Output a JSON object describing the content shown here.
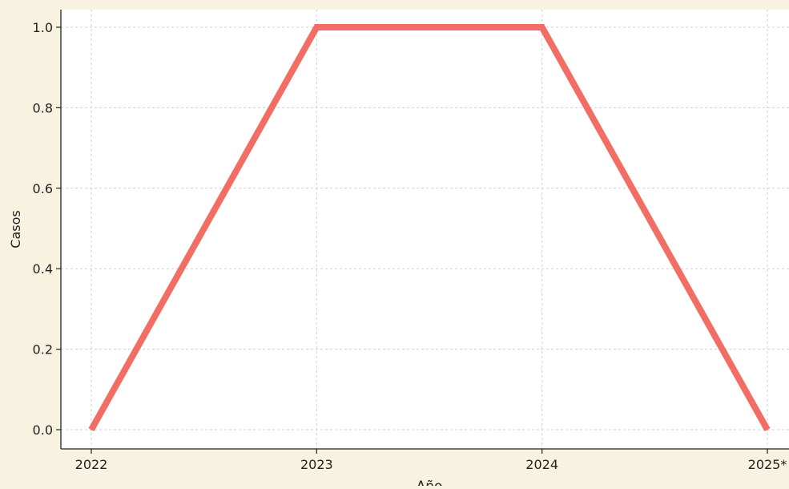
{
  "chart_data": {
    "type": "line",
    "title": "",
    "xlabel": "Año",
    "ylabel": "Casos",
    "categories": [
      "2022",
      "2023",
      "2024",
      "2025*"
    ],
    "series": [
      {
        "values": [
          0.0,
          1.0,
          1.0,
          0.0
        ],
        "color": "#f26d63"
      }
    ],
    "ylim": [
      0.0,
      1.0
    ],
    "yticks": [
      "0.0",
      "0.2",
      "0.4",
      "0.6",
      "0.8",
      "1.0"
    ],
    "grid": true,
    "legend": "none"
  },
  "colors": {
    "page_background": "#f8f3e0",
    "plot_background": "#ffffff",
    "grid": "#d0d0d0",
    "axis": "#222222"
  }
}
